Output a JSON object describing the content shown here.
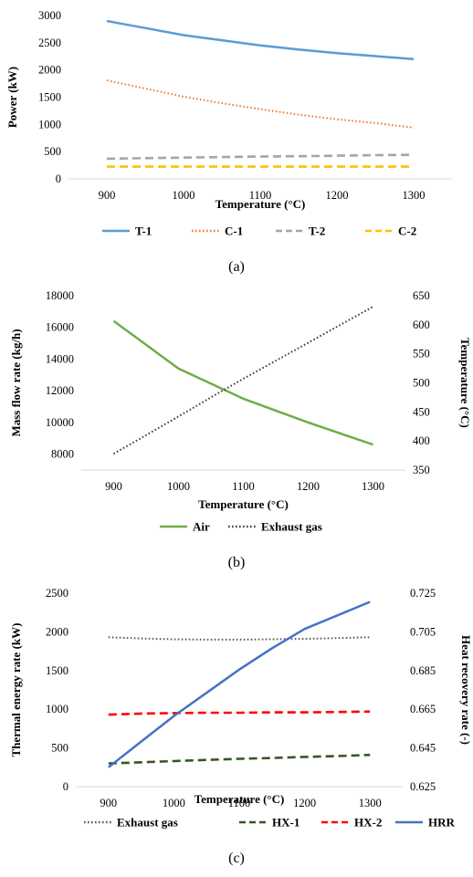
{
  "chart_data": [
    {
      "type": "line",
      "caption": "(a)",
      "xlabel": "Temperature (°C)",
      "ylabel": "Power (kW)",
      "xlim": [
        850,
        1350
      ],
      "ylim": [
        0,
        3000
      ],
      "xticks": [
        900,
        1000,
        1100,
        1200,
        1300
      ],
      "yticks": [
        0,
        500,
        1000,
        1500,
        2000,
        2500,
        3000
      ],
      "legend_position": "bottom",
      "grid": false,
      "x": [
        900,
        950,
        1000,
        1050,
        1100,
        1150,
        1200,
        1250,
        1300
      ],
      "series": [
        {
          "name": "T-1",
          "color": "#5b9bd5",
          "dash": "solid",
          "axis": "left",
          "values": [
            2900,
            2770,
            2640,
            2545,
            2450,
            2375,
            2310,
            2255,
            2200
          ]
        },
        {
          "name": "C-1",
          "color": "#ed7d31",
          "dash": "dotted",
          "axis": "left",
          "values": [
            1810,
            1660,
            1510,
            1390,
            1280,
            1180,
            1095,
            1025,
            940
          ]
        },
        {
          "name": "T-2",
          "color": "#a5a5a5",
          "dash": "dashed",
          "axis": "left",
          "values": [
            370,
            380,
            390,
            400,
            410,
            415,
            425,
            435,
            440
          ]
        },
        {
          "name": "C-2",
          "color": "#ffc000",
          "dash": "dashed",
          "axis": "left",
          "values": [
            225,
            225,
            225,
            225,
            225,
            225,
            225,
            225,
            225
          ]
        }
      ]
    },
    {
      "type": "line",
      "caption": "(b)",
      "xlabel": "Temperature (°C)",
      "ylabel": "Mass flow rate (kg/h)",
      "y2label": "Temperature (°C)",
      "xlim": [
        850,
        1350
      ],
      "ylim": [
        7000,
        18000
      ],
      "y2lim": [
        350,
        650
      ],
      "xticks": [
        900,
        1000,
        1100,
        1200,
        1300
      ],
      "yticks": [
        8000,
        10000,
        12000,
        14000,
        16000,
        18000
      ],
      "y2ticks": [
        350,
        400,
        450,
        500,
        550,
        600,
        650
      ],
      "legend_position": "bottom",
      "grid": false,
      "x": [
        900,
        950,
        1000,
        1050,
        1100,
        1150,
        1200,
        1250,
        1300
      ],
      "series": [
        {
          "name": "Air",
          "color": "#70ad47",
          "dash": "solid",
          "axis": "left",
          "values": [
            16400,
            14900,
            13400,
            12450,
            11500,
            10750,
            10000,
            9300,
            8600
          ]
        },
        {
          "name": "Exhaust gas",
          "color": "#404040",
          "dash": "dotted",
          "axis": "right",
          "values": [
            378,
            410,
            442,
            475,
            507,
            538,
            569,
            600,
            631
          ]
        }
      ]
    },
    {
      "type": "line",
      "caption": "(c)",
      "xlabel": "Temperature (°C)",
      "ylabel": "Thermal energy rate (kW)",
      "y2label": "Heat recovery rate (-)",
      "xlim": [
        850,
        1350
      ],
      "ylim": [
        0,
        2500
      ],
      "y2lim": [
        0.625,
        0.725
      ],
      "xticks": [
        900,
        1000,
        1100,
        1200,
        1300
      ],
      "yticks": [
        0,
        500,
        1000,
        1500,
        2000,
        2500
      ],
      "y2ticks": [
        "0.625",
        "0.645",
        "0.665",
        "0.685",
        "0.705",
        "0.725"
      ],
      "legend_position": "bottom",
      "grid": false,
      "x": [
        900,
        950,
        1000,
        1050,
        1100,
        1150,
        1200,
        1250,
        1300
      ],
      "series": [
        {
          "name": "Exhaust gas",
          "color": "#595959",
          "dash": "dotted",
          "axis": "left",
          "values": [
            1930,
            1915,
            1905,
            1900,
            1900,
            1905,
            1910,
            1920,
            1930
          ]
        },
        {
          "name": "HX-1",
          "color": "#375623",
          "dash": "dashed",
          "axis": "left",
          "values": [
            300,
            315,
            330,
            345,
            360,
            370,
            385,
            395,
            410
          ]
        },
        {
          "name": "HX-2",
          "color": "#ff0000",
          "dash": "dashed",
          "axis": "left",
          "values": [
            930,
            945,
            950,
            955,
            955,
            960,
            960,
            965,
            970
          ]
        },
        {
          "name": "HRR",
          "color": "#4472c4",
          "dash": "solid",
          "axis": "right",
          "values": [
            0.635,
            0.6483,
            0.6615,
            0.6735,
            0.6855,
            0.6965,
            0.7065,
            0.7135,
            0.7205
          ]
        }
      ]
    }
  ]
}
